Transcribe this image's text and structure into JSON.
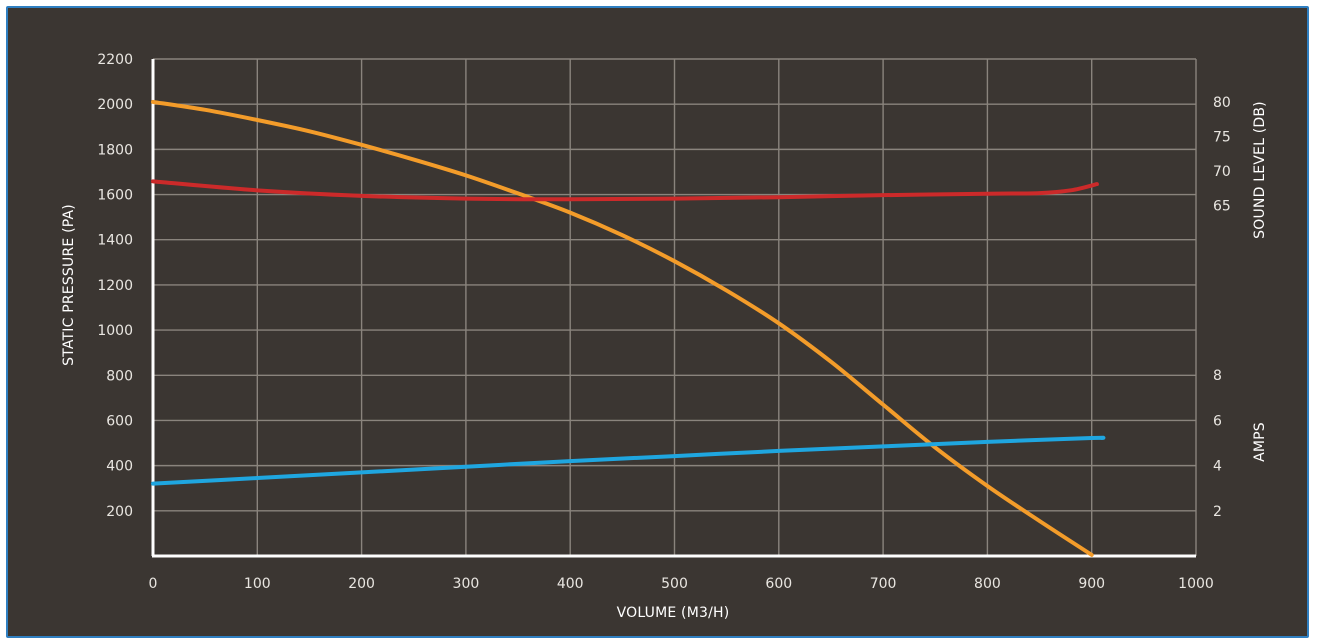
{
  "chart_data": {
    "type": "line",
    "xlabel": "VOLUME (M3/H)",
    "ylabel": "STATIC PRESSURE (PA)",
    "y2label": "SOUND LEVEL (DB)",
    "y3label": "AMPS",
    "xlim": [
      0,
      1000
    ],
    "ylim": [
      0,
      2200
    ],
    "x_ticks": [
      "0",
      "100",
      "200",
      "300",
      "400",
      "500",
      "600",
      "700",
      "800",
      "900",
      "1000"
    ],
    "y_ticks": [
      "200",
      "400",
      "600",
      "800",
      "1000",
      "1200",
      "1400",
      "1600",
      "1800",
      "2000",
      "2200"
    ],
    "sound_ticks": [
      {
        "label": "80",
        "value": 80
      },
      {
        "label": "75",
        "value": 75
      },
      {
        "label": "70",
        "value": 70
      },
      {
        "label": "65",
        "value": 65
      }
    ],
    "amps_ticks": [
      {
        "label": "8",
        "value": 8
      },
      {
        "label": "6",
        "value": 6
      },
      {
        "label": "4",
        "value": 4
      },
      {
        "label": "2",
        "value": 2
      }
    ],
    "grid": true,
    "series": [
      {
        "axis": "pressure",
        "color": "#f39c2a",
        "x": [
          0,
          50,
          100,
          150,
          200,
          250,
          300,
          350,
          400,
          450,
          500,
          550,
          600,
          650,
          700,
          750,
          800,
          850,
          900
        ],
        "y": [
          2010,
          1975,
          1930,
          1880,
          1820,
          1755,
          1685,
          1605,
          1520,
          1420,
          1305,
          1175,
          1030,
          860,
          670,
          480,
          310,
          155,
          5
        ]
      },
      {
        "axis": "sound",
        "color": "#cc2a2a",
        "x": [
          0,
          100,
          200,
          300,
          400,
          500,
          600,
          700,
          800,
          850,
          880,
          905
        ],
        "y": [
          68.5,
          67.2,
          66.4,
          66.0,
          65.9,
          66.0,
          66.2,
          66.5,
          66.7,
          66.8,
          67.2,
          68.1
        ]
      },
      {
        "axis": "amps",
        "color": "#1fa6e0",
        "x": [
          0,
          100,
          200,
          300,
          400,
          500,
          600,
          700,
          800,
          900,
          910
        ],
        "y": [
          3.2,
          3.45,
          3.7,
          3.95,
          4.2,
          4.42,
          4.65,
          4.85,
          5.05,
          5.22,
          5.22
        ]
      }
    ]
  }
}
